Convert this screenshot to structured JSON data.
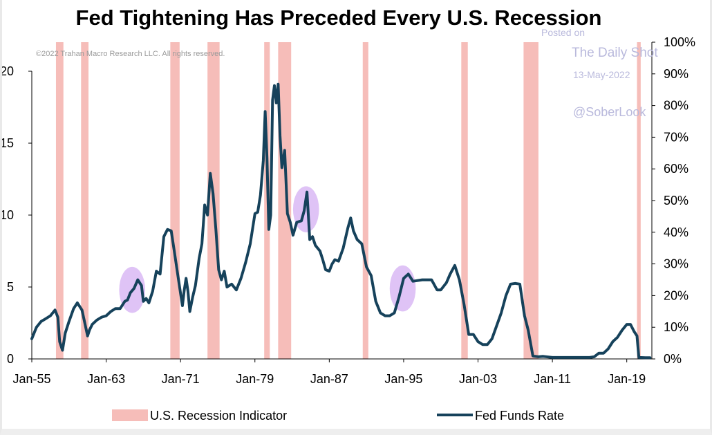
{
  "chart_data": {
    "type": "line",
    "title": "Fed Tightening Has Preceded Every U.S. Recession",
    "copyright": "©2022 Trahan Macro Research LLC. All rights reserved.",
    "watermark": {
      "posted_on": "Posted on",
      "site": "The Daily Shot",
      "date": "13-May-2022",
      "handle": "@SoberLook"
    },
    "xlim": [
      1955,
      2021.7
    ],
    "x_ticks": [
      {
        "label": "Jan-55",
        "value": 1955
      },
      {
        "label": "Jan-63",
        "value": 1963
      },
      {
        "label": "Jan-71",
        "value": 1971
      },
      {
        "label": "Jan-79",
        "value": 1979
      },
      {
        "label": "Jan-87",
        "value": 1987
      },
      {
        "label": "Jan-95",
        "value": 1995
      },
      {
        "label": "Jan-03",
        "value": 2003
      },
      {
        "label": "Jan-11",
        "value": 2011
      },
      {
        "label": "Jan-19",
        "value": 2019
      }
    ],
    "left_axis": {
      "ylim": [
        0,
        20
      ],
      "ticks": [
        {
          "label": "0",
          "value": 0
        },
        {
          "label": "5",
          "value": 5
        },
        {
          "label": "10",
          "value": 10
        },
        {
          "label": "15",
          "value": 15
        },
        {
          "label": "20",
          "value": 20
        }
      ]
    },
    "right_axis": {
      "ylim": [
        0,
        100
      ],
      "ticks": [
        {
          "label": "0%",
          "value": 0
        },
        {
          "label": "10%",
          "value": 10
        },
        {
          "label": "20%",
          "value": 20
        },
        {
          "label": "30%",
          "value": 30
        },
        {
          "label": "40%",
          "value": 40
        },
        {
          "label": "50%",
          "value": 50
        },
        {
          "label": "60%",
          "value": 60
        },
        {
          "label": "70%",
          "value": 70
        },
        {
          "label": "80%",
          "value": 80
        },
        {
          "label": "90%",
          "value": 90
        },
        {
          "label": "100%",
          "value": 100
        }
      ]
    },
    "recessions": [
      {
        "start": 1957.6,
        "end": 1958.4
      },
      {
        "start": 1960.3,
        "end": 1961.1
      },
      {
        "start": 1969.9,
        "end": 1970.9
      },
      {
        "start": 1973.9,
        "end": 1975.2
      },
      {
        "start": 1980.0,
        "end": 1980.6
      },
      {
        "start": 1981.5,
        "end": 1982.9
      },
      {
        "start": 1990.6,
        "end": 1991.2
      },
      {
        "start": 2001.2,
        "end": 2001.9
      },
      {
        "start": 2007.9,
        "end": 2009.5
      },
      {
        "start": 2020.1,
        "end": 2020.5
      }
    ],
    "highlights": [
      {
        "x": 1965.8,
        "y": 4.8,
        "rx": 1.4,
        "ry": 1.6
      },
      {
        "x": 1984.5,
        "y": 10.4,
        "rx": 1.4,
        "ry": 1.6
      },
      {
        "x": 1994.9,
        "y": 4.9,
        "rx": 1.4,
        "ry": 1.6
      }
    ],
    "series": [
      {
        "name": "Fed Funds Rate",
        "color": "#16425b",
        "x": [
          1955.0,
          1955.5,
          1956.0,
          1956.5,
          1957.0,
          1957.5,
          1957.8,
          1958.0,
          1958.3,
          1958.6,
          1959.0,
          1959.5,
          1959.9,
          1960.4,
          1960.8,
          1961.0,
          1961.2,
          1961.5,
          1962.0,
          1962.5,
          1963.0,
          1963.5,
          1964.0,
          1964.5,
          1965.0,
          1965.3,
          1965.6,
          1966.0,
          1966.4,
          1966.8,
          1967.0,
          1967.3,
          1967.6,
          1968.0,
          1968.4,
          1968.8,
          1969.2,
          1969.6,
          1970.0,
          1970.3,
          1970.6,
          1970.9,
          1971.2,
          1971.4,
          1971.6,
          1971.8,
          1972.0,
          1972.3,
          1972.6,
          1973.0,
          1973.3,
          1973.6,
          1973.9,
          1974.2,
          1974.5,
          1974.8,
          1975.1,
          1975.4,
          1975.7,
          1976.0,
          1976.5,
          1977.0,
          1977.5,
          1978.0,
          1978.5,
          1979.0,
          1979.3,
          1979.6,
          1979.9,
          1980.1,
          1980.3,
          1980.5,
          1980.7,
          1980.9,
          1981.1,
          1981.3,
          1981.5,
          1981.7,
          1981.9,
          1982.2,
          1982.5,
          1982.8,
          1983.1,
          1983.5,
          1984.0,
          1984.3,
          1984.6,
          1984.9,
          1985.2,
          1985.5,
          1986.0,
          1986.3,
          1986.6,
          1987.0,
          1987.3,
          1987.6,
          1988.0,
          1988.5,
          1989.0,
          1989.3,
          1989.6,
          1990.0,
          1990.5,
          1991.0,
          1991.5,
          1992.0,
          1992.5,
          1993.0,
          1993.5,
          1994.0,
          1994.5,
          1995.0,
          1995.5,
          1996.0,
          1997.0,
          1998.0,
          1998.6,
          1999.0,
          1999.6,
          2000.0,
          2000.5,
          2001.0,
          2001.5,
          2002.0,
          2002.5,
          2003.0,
          2003.5,
          2004.0,
          2004.5,
          2005.0,
          2005.5,
          2006.0,
          2006.5,
          2007.0,
          2007.5,
          2008.0,
          2008.4,
          2008.9,
          2009.5,
          2010.0,
          2011.0,
          2012.0,
          2013.0,
          2014.0,
          2015.0,
          2015.5,
          2016.0,
          2016.5,
          2017.0,
          2017.5,
          2018.0,
          2018.5,
          2019.0,
          2019.4,
          2019.8,
          2020.1,
          2020.3,
          2021.0,
          2021.5
        ],
        "values": [
          1.4,
          2.2,
          2.6,
          2.8,
          3.0,
          3.4,
          2.9,
          1.2,
          0.6,
          1.8,
          2.6,
          3.5,
          3.9,
          3.4,
          2.2,
          1.6,
          2.0,
          2.4,
          2.7,
          2.9,
          3.0,
          3.3,
          3.5,
          3.5,
          4.0,
          4.1,
          4.6,
          4.9,
          5.5,
          5.1,
          4.0,
          4.2,
          3.9,
          4.7,
          6.1,
          5.9,
          8.5,
          9.0,
          8.9,
          7.6,
          6.3,
          5.0,
          3.7,
          4.8,
          5.6,
          4.7,
          3.3,
          4.3,
          5.1,
          7.0,
          8.0,
          10.7,
          10.0,
          12.9,
          11.5,
          9.0,
          6.2,
          5.5,
          6.1,
          5.0,
          5.2,
          4.8,
          5.6,
          6.7,
          8.0,
          10.1,
          10.2,
          11.4,
          13.8,
          17.2,
          14.0,
          9.0,
          10.0,
          18.0,
          19.0,
          17.8,
          19.1,
          15.5,
          13.3,
          14.5,
          10.1,
          9.5,
          8.6,
          9.5,
          9.6,
          10.3,
          11.6,
          8.3,
          8.5,
          7.9,
          7.5,
          6.9,
          6.2,
          6.1,
          6.6,
          6.9,
          6.8,
          7.7,
          9.1,
          9.8,
          8.9,
          8.3,
          8.0,
          6.4,
          5.8,
          4.0,
          3.2,
          3.0,
          3.0,
          3.2,
          4.3,
          5.6,
          5.9,
          5.4,
          5.5,
          5.5,
          4.8,
          4.8,
          5.3,
          5.9,
          6.5,
          5.5,
          3.8,
          1.7,
          1.7,
          1.2,
          1.0,
          1.0,
          1.4,
          2.3,
          3.2,
          4.4,
          5.2,
          5.25,
          5.2,
          3.0,
          2.0,
          0.2,
          0.15,
          0.18,
          0.1,
          0.1,
          0.1,
          0.1,
          0.1,
          0.15,
          0.4,
          0.4,
          0.7,
          1.2,
          1.5,
          2.0,
          2.4,
          2.4,
          1.9,
          1.6,
          0.1,
          0.08,
          0.08
        ]
      }
    ],
    "legend": {
      "recession_label": "U.S. Recession Indicator",
      "series_label": "Fed Funds Rate"
    },
    "colors": {
      "recession": "#f6bdb9",
      "highlight": "#d9b9f5",
      "line": "#16425b",
      "axis": "#000000"
    }
  }
}
